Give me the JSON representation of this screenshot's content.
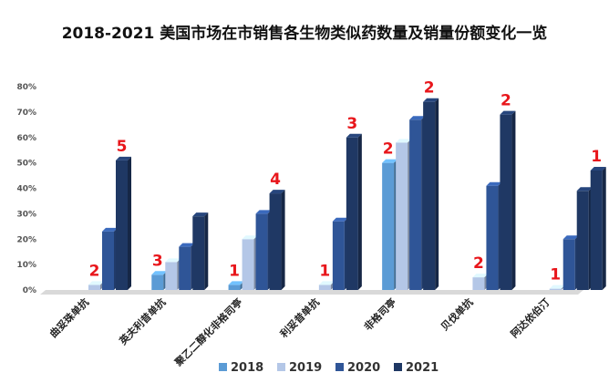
{
  "chart_data": {
    "type": "bar",
    "title": "2018-2021 美国市场在市销售各生物类似药数量及销量份额变化一览",
    "categories": [
      "曲妥珠单抗",
      "英夫利昔单抗",
      "聚乙二醇化非格司亭",
      "利妥昔单抗",
      "非格司亭",
      "贝伐单抗",
      "阿达依伯汀"
    ],
    "counts": [
      "2",
      "3",
      "1",
      "1",
      "2",
      "2",
      "1"
    ],
    "counts_after": [
      "5",
      "",
      "4",
      "3",
      "2",
      "2",
      "1"
    ],
    "series": [
      {
        "name": "2018",
        "values": [
          null,
          6,
          2,
          null,
          50,
          null,
          null
        ]
      },
      {
        "name": "2019",
        "values": [
          2,
          11,
          20,
          2,
          58,
          5,
          0.5
        ]
      },
      {
        "name": "2020",
        "values": [
          23,
          17,
          30,
          27,
          67,
          41,
          20
        ]
      },
      {
        "name": "2021",
        "values": [
          51,
          29,
          38,
          60,
          74,
          69,
          39
        ]
      }
    ],
    "extra_series_2022": [
      null,
      null,
      null,
      null,
      null,
      null,
      47
    ],
    "ylim": [
      0,
      80
    ],
    "y_ticks": [
      "0%",
      "10%",
      "20%",
      "30%",
      "40%",
      "50%",
      "60%",
      "70%",
      "80%"
    ],
    "legend_position": "bottom",
    "colors": {
      "2018": "#5b9bd5",
      "2019": "#b4c7e7",
      "2020": "#2f5597",
      "2021": "#1f3864",
      "count_label": "#e8161b"
    }
  }
}
